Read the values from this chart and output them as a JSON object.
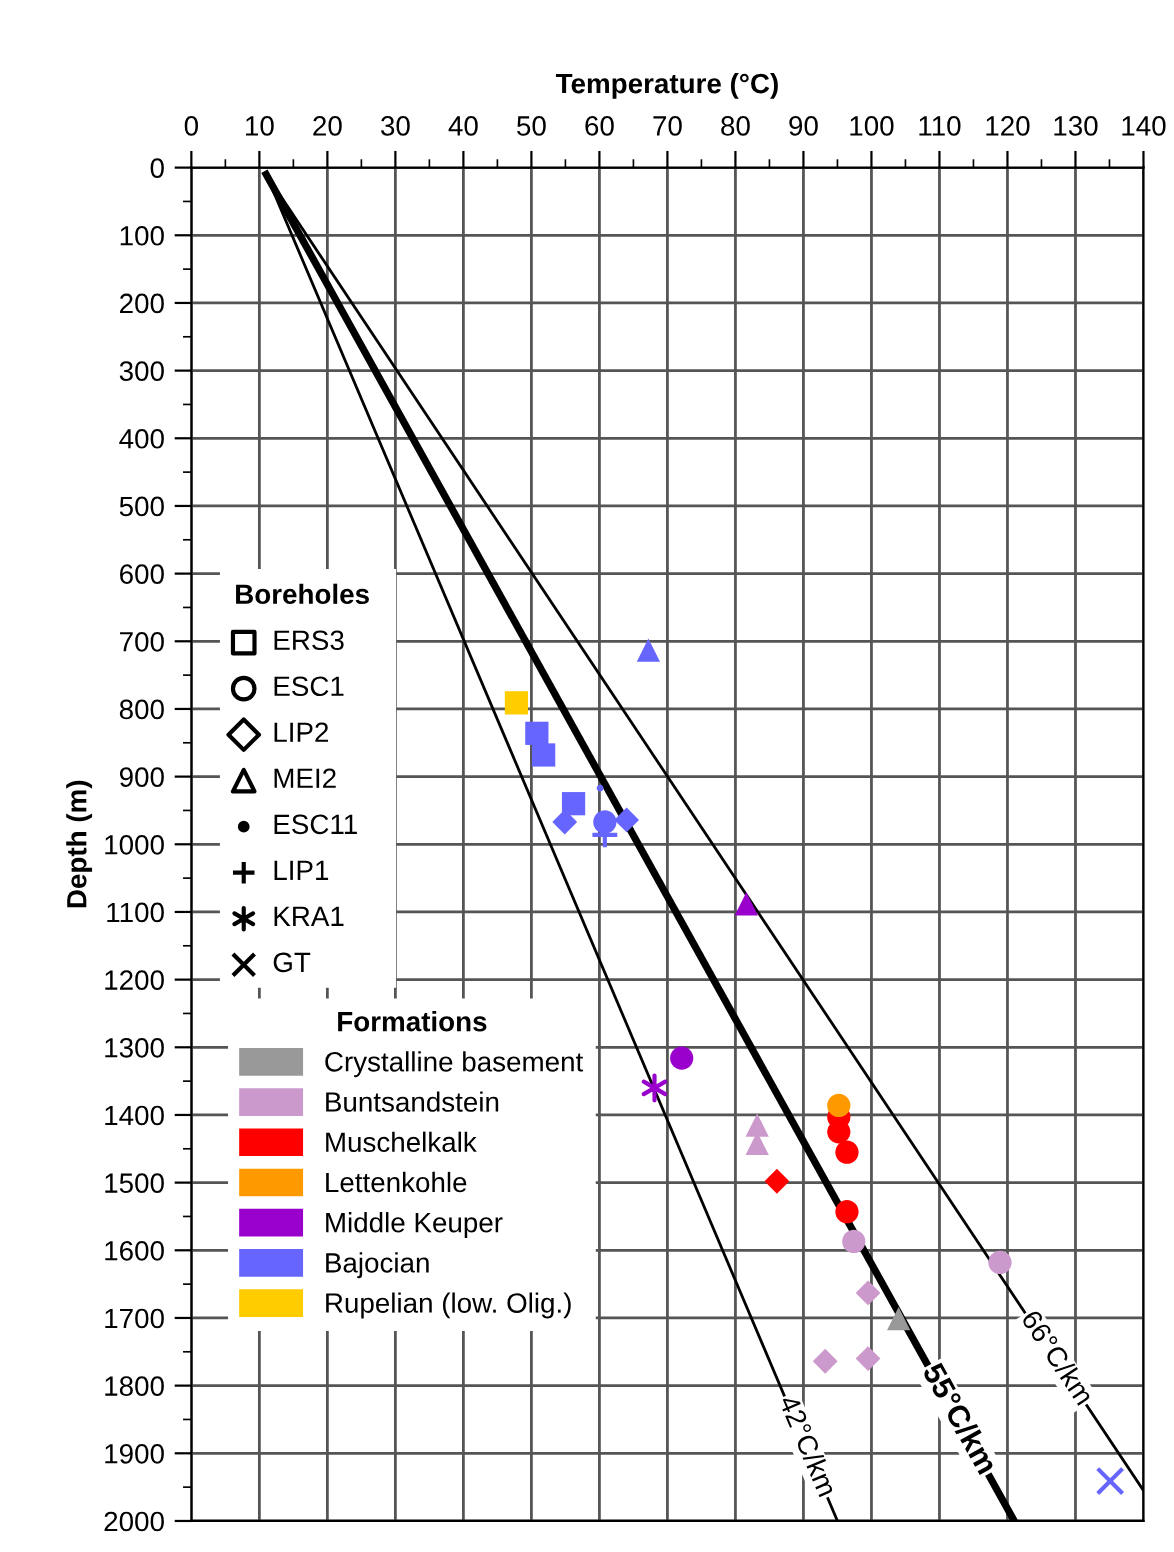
{
  "chart_data": {
    "type": "scatter",
    "xlabel": "Temperature (°C)",
    "ylabel": "Depth (m)",
    "legend_title": "Formations",
    "legend": "left",
    "xlim": [
      0,
      140
    ],
    "xticks": [
      0,
      10,
      20,
      30,
      40,
      50,
      60,
      70,
      80,
      90,
      100,
      110,
      120,
      130,
      140
    ],
    "ylim": [
      2000,
      0
    ],
    "yticks": [
      0,
      100,
      200,
      300,
      400,
      500,
      600,
      700,
      800,
      900,
      1000,
      1100,
      1200,
      1300,
      1400,
      1500,
      1600,
      1700,
      1800,
      1900,
      2000
    ],
    "grid": true,
    "series": [
      {
        "type": "line",
        "x": [
          11,
          95
        ],
        "values": [
          10,
          2000
        ],
        "color": "#000000",
        "line_style": "solid"
      },
      {
        "type": "line",
        "x": [
          11,
          121
        ],
        "values": [
          10,
          2000
        ],
        "color": "#000000",
        "line_style": "solid"
      },
      {
        "type": "line",
        "x": [
          11,
          140
        ],
        "values": [
          10,
          1955
        ],
        "color": "#000000",
        "line_style": "solid"
      },
      {
        "name": "Crystalline basement",
        "color": "#999999",
        "marker": "triangle",
        "x": [
          104
        ],
        "values": [
          1701
        ]
      },
      {
        "name": "Buntsandstein",
        "color": "#cc99cc",
        "marker": "circle",
        "x": [
          97.4,
          118.9
        ],
        "values": [
          1587,
          1618
        ]
      },
      {
        "color": "#cc99cc",
        "marker": "diamond",
        "x": [
          99.5,
          93.2,
          99.5
        ],
        "values": [
          1663,
          1764,
          1760
        ]
      },
      {
        "color": "#cc99cc",
        "marker": "triangle",
        "x": [
          83.2,
          83.2
        ],
        "values": [
          1415,
          1442
        ]
      },
      {
        "name": "Muschelkalk",
        "color": "#ff0000",
        "marker": "circle",
        "x": [
          95.2,
          95.2,
          96.4,
          96.4
        ],
        "values": [
          1403,
          1425,
          1455,
          1543
        ]
      },
      {
        "color": "#ff0000",
        "marker": "diamond",
        "x": [
          86.1
        ],
        "values": [
          1498
        ]
      },
      {
        "name": "Lettenkohle",
        "color": "#ff9900",
        "marker": "circle",
        "x": [
          95.2
        ],
        "values": [
          1386
        ]
      },
      {
        "name": "Middle Keuper",
        "color": "#9900cc",
        "marker": "circle",
        "x": [
          72.1
        ],
        "values": [
          1316
        ]
      },
      {
        "color": "#9900cc",
        "marker": "triangle",
        "x": [
          81.6
        ],
        "values": [
          1088
        ]
      },
      {
        "color": "#9900cc",
        "marker": "cross",
        "x": [
          68.1
        ],
        "values": [
          1360
        ]
      },
      {
        "name": "Bajocian",
        "color": "#6666ff",
        "marker": "square",
        "x": [
          50.8,
          51.8,
          56.2
        ],
        "values": [
          836,
          868,
          940
        ]
      },
      {
        "color": "#6666ff",
        "marker": "circle",
        "x": [
          60.8
        ],
        "values": [
          967
        ]
      },
      {
        "color": "#6666ff",
        "marker": "diamond",
        "x": [
          54.9,
          64
        ],
        "values": [
          967,
          964
        ]
      },
      {
        "color": "#6666ff",
        "marker": "triangle",
        "x": [
          67.2
        ],
        "values": [
          713
        ]
      },
      {
        "color": "#6666ff",
        "marker": "point",
        "x": [
          60.1
        ],
        "values": [
          917
        ]
      },
      {
        "color": "#6666ff",
        "marker": "plus",
        "x": [
          60.8
        ],
        "values": [
          986
        ]
      },
      {
        "color": "#6666ff",
        "marker": "x",
        "x": [
          135.1
        ],
        "values": [
          1941
        ]
      },
      {
        "name": "Rupelian (low. Olig.)",
        "color": "#ffcc00",
        "marker": "square",
        "x": [
          47.8
        ],
        "values": [
          791
        ]
      }
    ],
    "annotations": [
      "Boreholes",
      "ERS3",
      "ESC1",
      "LIP2",
      "MEI2",
      "ESC11",
      "LIP1",
      "KRA1",
      "GT",
      "42°C/km",
      "55°C/km",
      "66°C/km"
    ]
  }
}
